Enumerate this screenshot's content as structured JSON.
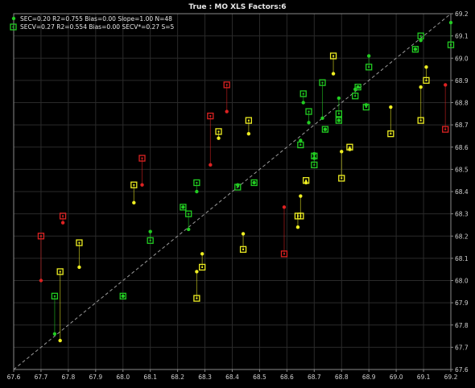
{
  "chart_data": {
    "type": "scatter",
    "title": "True : MO   XLS   Factors:6",
    "xlim": [
      67.6,
      69.2
    ],
    "ylim": [
      67.6,
      69.2
    ],
    "x_ticks": [
      "67.6",
      "67.7",
      "67.8",
      "67.9",
      "68.0",
      "68.1",
      "68.2",
      "68.3",
      "68.4",
      "68.5",
      "68.6",
      "68.7",
      "68.8",
      "68.9",
      "69.0",
      "69.1",
      "69.2"
    ],
    "y_ticks": [
      "67.6",
      "67.7",
      "67.8",
      "67.9",
      "68.0",
      "68.1",
      "68.2",
      "68.3",
      "68.4",
      "68.5",
      "68.6",
      "68.7",
      "68.8",
      "68.9",
      "69.0",
      "69.1",
      "69.2"
    ],
    "grid": true,
    "legend_position": "top-left",
    "legend": [
      {
        "label": "SEC=0.20 R2=0.755 Bias=0.00 Slope=1.00 N=48",
        "marker": "dot"
      },
      {
        "label": "SECV=0.27 R2=0.554 Bias=0.00 SECV*=0.27 S=5",
        "marker": "square"
      }
    ],
    "colors": {
      "good": "#22cc22",
      "warn": "#eeee22",
      "bad": "#dd2222",
      "identity_line": "#9a9a9a",
      "grid": "#2a2a2a",
      "background": "#000000"
    },
    "points": [
      {
        "x": 67.7,
        "cal": 68.0,
        "val": 68.2,
        "c": "bad"
      },
      {
        "x": 67.75,
        "cal": 67.76,
        "val": 67.93,
        "c": "good"
      },
      {
        "x": 67.77,
        "cal": 67.73,
        "val": 68.04,
        "c": "warn"
      },
      {
        "x": 67.78,
        "cal": 68.26,
        "val": 68.29,
        "c": "bad"
      },
      {
        "x": 67.84,
        "cal": 68.06,
        "val": 68.17,
        "c": "warn"
      },
      {
        "x": 68.0,
        "cal": 67.93,
        "val": 67.93,
        "c": "good"
      },
      {
        "x": 68.04,
        "cal": 68.35,
        "val": 68.43,
        "c": "warn"
      },
      {
        "x": 68.07,
        "cal": 68.43,
        "val": 68.55,
        "c": "bad"
      },
      {
        "x": 68.1,
        "cal": 68.22,
        "val": 68.18,
        "c": "good"
      },
      {
        "x": 68.22,
        "cal": 68.33,
        "val": 68.33,
        "c": "good"
      },
      {
        "x": 68.24,
        "cal": 68.23,
        "val": 68.3,
        "c": "good"
      },
      {
        "x": 68.27,
        "cal": 68.4,
        "val": 68.44,
        "c": "good"
      },
      {
        "x": 68.27,
        "cal": 68.04,
        "val": 67.92,
        "c": "warn"
      },
      {
        "x": 68.29,
        "cal": 68.12,
        "val": 68.06,
        "c": "warn"
      },
      {
        "x": 68.32,
        "cal": 68.52,
        "val": 68.74,
        "c": "bad"
      },
      {
        "x": 68.35,
        "cal": 68.64,
        "val": 68.67,
        "c": "warn"
      },
      {
        "x": 68.38,
        "cal": 68.76,
        "val": 68.88,
        "c": "bad"
      },
      {
        "x": 68.42,
        "cal": 68.43,
        "val": 68.42,
        "c": "good"
      },
      {
        "x": 68.44,
        "cal": 68.21,
        "val": 68.14,
        "c": "warn"
      },
      {
        "x": 68.46,
        "cal": 68.66,
        "val": 68.72,
        "c": "warn"
      },
      {
        "x": 68.48,
        "cal": 68.44,
        "val": 68.44,
        "c": "good"
      },
      {
        "x": 68.59,
        "cal": 68.33,
        "val": 68.12,
        "c": "bad"
      },
      {
        "x": 68.64,
        "cal": 68.24,
        "val": 68.29,
        "c": "warn"
      },
      {
        "x": 68.65,
        "cal": 68.38,
        "val": 68.29,
        "c": "warn"
      },
      {
        "x": 68.65,
        "cal": 68.63,
        "val": 68.61,
        "c": "good"
      },
      {
        "x": 68.66,
        "cal": 68.8,
        "val": 68.84,
        "c": "good"
      },
      {
        "x": 68.67,
        "cal": 68.44,
        "val": 68.45,
        "c": "warn"
      },
      {
        "x": 68.68,
        "cal": 68.71,
        "val": 68.76,
        "c": "good"
      },
      {
        "x": 68.7,
        "cal": 68.57,
        "val": 68.52,
        "c": "good"
      },
      {
        "x": 68.7,
        "cal": 68.55,
        "val": 68.56,
        "c": "good"
      },
      {
        "x": 68.73,
        "cal": 68.73,
        "val": 68.89,
        "c": "good"
      },
      {
        "x": 68.74,
        "cal": 68.68,
        "val": 68.68,
        "c": "good"
      },
      {
        "x": 68.77,
        "cal": 68.93,
        "val": 69.01,
        "c": "warn"
      },
      {
        "x": 68.79,
        "cal": 68.82,
        "val": 68.75,
        "c": "good"
      },
      {
        "x": 68.79,
        "cal": 68.72,
        "val": 68.72,
        "c": "good"
      },
      {
        "x": 68.8,
        "cal": 68.58,
        "val": 68.46,
        "c": "warn"
      },
      {
        "x": 68.83,
        "cal": 68.59,
        "val": 68.6,
        "c": "warn"
      },
      {
        "x": 68.85,
        "cal": 68.86,
        "val": 68.83,
        "c": "good"
      },
      {
        "x": 68.86,
        "cal": 68.87,
        "val": 68.87,
        "c": "good"
      },
      {
        "x": 68.89,
        "cal": 68.79,
        "val": 68.78,
        "c": "good"
      },
      {
        "x": 68.9,
        "cal": 69.01,
        "val": 68.96,
        "c": "good"
      },
      {
        "x": 68.98,
        "cal": 68.78,
        "val": 68.66,
        "c": "warn"
      },
      {
        "x": 69.07,
        "cal": 69.04,
        "val": 69.04,
        "c": "good"
      },
      {
        "x": 69.09,
        "cal": 68.87,
        "val": 68.72,
        "c": "warn"
      },
      {
        "x": 69.09,
        "cal": 69.08,
        "val": 69.1,
        "c": "good"
      },
      {
        "x": 69.11,
        "cal": 68.96,
        "val": 68.9,
        "c": "warn"
      },
      {
        "x": 69.18,
        "cal": 68.88,
        "val": 68.68,
        "c": "bad"
      },
      {
        "x": 69.2,
        "cal": 69.16,
        "val": 69.06,
        "c": "good"
      }
    ]
  }
}
